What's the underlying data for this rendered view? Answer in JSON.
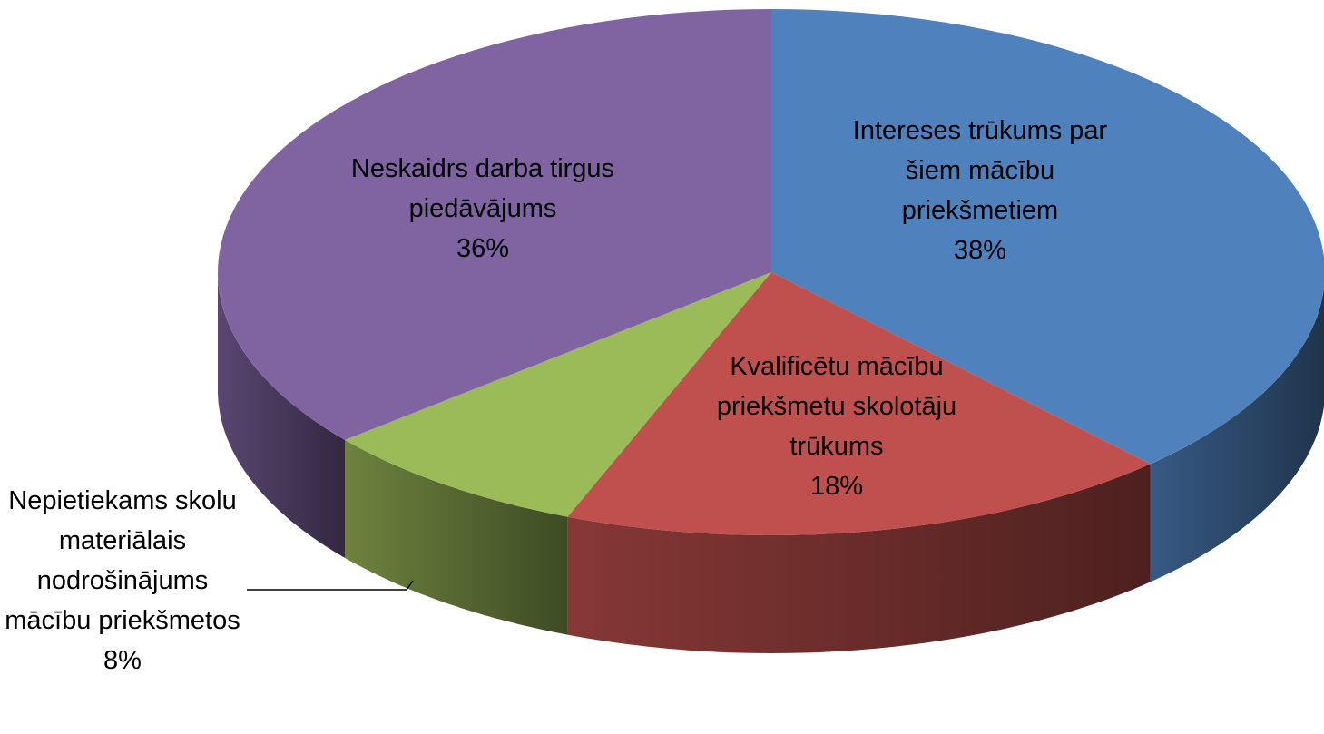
{
  "chart_data": {
    "type": "pie",
    "style": "3d",
    "categories": [
      "Intereses trūkums par šiem mācību priekšmetiem",
      "Kvalificētu mācību priekšmetu skolotāju trūkums",
      "Nepietiekams skolu materiālais nodrošinājums mācību priekšmetos",
      "Neskaidrs darba tirgus piedāvājums"
    ],
    "values": [
      38,
      18,
      8,
      36
    ],
    "value_labels": [
      "38%",
      "18%",
      "8%",
      "36%"
    ],
    "colors": [
      "#4f81bd",
      "#c0504d",
      "#9bbb59",
      "#8064a2"
    ]
  }
}
